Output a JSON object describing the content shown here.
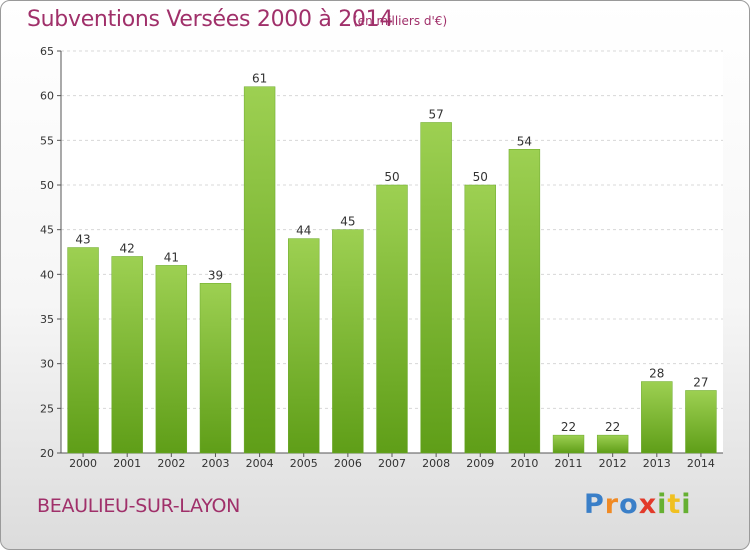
{
  "header": {
    "title": "Subventions Versées 2000 à 2014",
    "subtitle": "(en milliers d'€)"
  },
  "footer": {
    "commune": "BEAULIEU-SUR-LAYON",
    "logo": "Proxiti"
  },
  "colors": {
    "bar_top": "#9dd052",
    "bar_bottom": "#5f9e18",
    "title": "#a0306a"
  },
  "chart_data": {
    "type": "bar",
    "title": "Subventions Versées 2000 à 2014",
    "subtitle": "(en milliers d'€)",
    "xlabel": "",
    "ylabel": "",
    "categories": [
      "2000",
      "2001",
      "2002",
      "2003",
      "2004",
      "2005",
      "2006",
      "2007",
      "2008",
      "2009",
      "2010",
      "2011",
      "2012",
      "2013",
      "2014"
    ],
    "values": [
      43,
      42,
      41,
      39,
      61,
      44,
      45,
      50,
      57,
      50,
      54,
      22,
      22,
      28,
      27
    ],
    "ylim": [
      20,
      65
    ],
    "yticks": [
      20,
      25,
      30,
      35,
      40,
      45,
      50,
      55,
      60,
      65
    ],
    "grid": true,
    "legend": "none"
  }
}
